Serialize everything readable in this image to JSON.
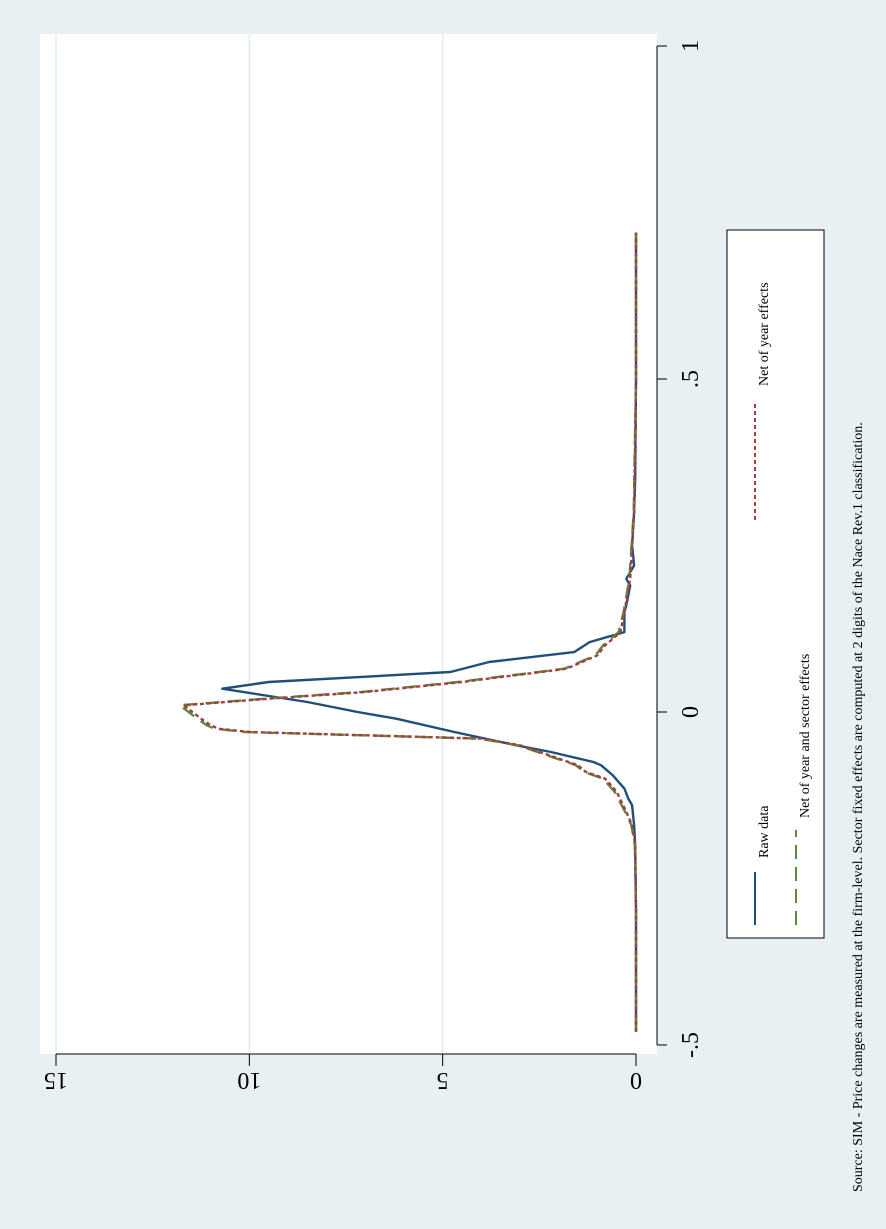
{
  "chart_data": {
    "type": "line",
    "title": "",
    "xlabel": "",
    "ylabel": "",
    "xlim": [
      -0.5,
      1.0
    ],
    "ylim": [
      0,
      15
    ],
    "x_ticks": [
      -0.5,
      0,
      0.5,
      1
    ],
    "x_tick_labels": [
      "-.5",
      "0",
      ".5",
      "1"
    ],
    "y_ticks": [
      0,
      5,
      10,
      15
    ],
    "y_tick_labels": [
      "0",
      "5",
      "10",
      "15"
    ],
    "grid": "horizontal at y ticks",
    "orientation": "rotated 90 degrees clockwise",
    "legend": {
      "placement": "bottom-right",
      "entries": [
        {
          "label": "Raw data",
          "color": "#1f4e79",
          "dash": "solid"
        },
        {
          "label": "Net of year effects",
          "color": "#a63d40",
          "dash": "short-dash"
        },
        {
          "label": "Net of year and sector effects",
          "color": "#5e8a3a",
          "dash": "long-dash"
        }
      ]
    },
    "note": "Source: SIM - Price changes are measured at the firm-level. Sector fixed effects are computed at 2 digits of the Nace Rev.1 classification.",
    "series": [
      {
        "name": "Raw data",
        "color": "#1f4e79",
        "x": [
          -0.48,
          -0.3,
          -0.2,
          -0.17,
          -0.14,
          -0.13,
          -0.115,
          -0.095,
          -0.08,
          -0.075,
          -0.06,
          -0.05,
          -0.03,
          -0.01,
          0,
          0.015,
          0.035,
          0.045,
          0.06,
          0.075,
          0.09,
          0.105,
          0.12,
          0.15,
          0.16,
          0.19,
          0.2,
          0.22,
          0.25,
          0.3,
          0.35,
          0.5,
          0.72
        ],
        "y": [
          0,
          0,
          0.02,
          0.05,
          0.1,
          0.2,
          0.3,
          0.6,
          0.9,
          1.1,
          2.2,
          3.1,
          4.7,
          6.2,
          7.2,
          8.5,
          10.7,
          9.5,
          4.8,
          3.8,
          1.6,
          1.2,
          0.3,
          0.3,
          0.25,
          0.15,
          0.25,
          0.05,
          0.1,
          0.05,
          0.02,
          0,
          0
        ]
      },
      {
        "name": "Net of year effects",
        "color": "#a63d40",
        "x": [
          -0.48,
          -0.3,
          -0.2,
          -0.17,
          -0.15,
          -0.12,
          -0.1,
          -0.09,
          -0.08,
          -0.07,
          -0.05,
          -0.04,
          -0.03,
          -0.025,
          -0.02,
          -0.012,
          0.01,
          0.02,
          0.03,
          0.045,
          0.065,
          0.085,
          0.1,
          0.12,
          0.15,
          0.2,
          0.3,
          0.5,
          0.72
        ],
        "y": [
          0,
          0,
          0.02,
          0.1,
          0.25,
          0.5,
          0.8,
          1.3,
          1.5,
          2.0,
          3.0,
          4.0,
          10.0,
          10.8,
          11.0,
          11.2,
          11.7,
          9.5,
          7.0,
          4.5,
          1.8,
          1.0,
          0.8,
          0.4,
          0.3,
          0.15,
          0.05,
          0,
          0
        ]
      },
      {
        "name": "Net of year and sector effects",
        "color": "#5e8a3a",
        "x": [
          -0.48,
          -0.3,
          -0.2,
          -0.17,
          -0.15,
          -0.12,
          -0.1,
          -0.09,
          -0.08,
          -0.07,
          -0.05,
          -0.04,
          -0.03,
          -0.025,
          -0.02,
          -0.012,
          0.01,
          0.02,
          0.03,
          0.045,
          0.065,
          0.085,
          0.1,
          0.12,
          0.15,
          0.2,
          0.3,
          0.5,
          0.72
        ],
        "y": [
          0,
          0,
          0.03,
          0.12,
          0.28,
          0.55,
          0.85,
          1.35,
          1.55,
          2.05,
          3.05,
          4.05,
          10.1,
          10.9,
          11.1,
          11.3,
          11.8,
          9.6,
          7.1,
          4.6,
          1.85,
          1.05,
          0.85,
          0.45,
          0.32,
          0.17,
          0.06,
          0,
          0
        ]
      }
    ]
  }
}
